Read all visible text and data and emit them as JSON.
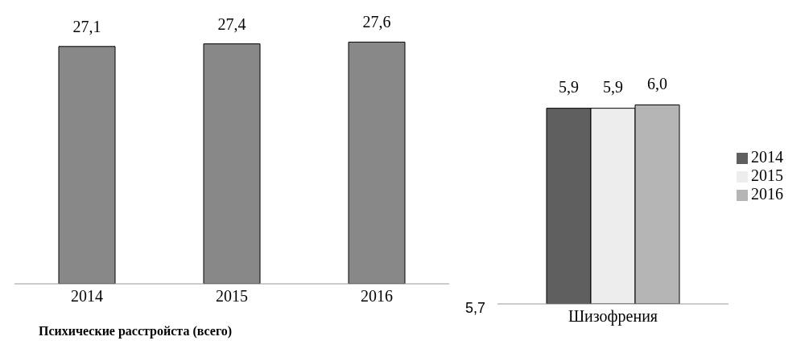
{
  "chart_data": [
    {
      "type": "bar",
      "categories": [
        "2014",
        "2015",
        "2016"
      ],
      "values": [
        27.1,
        27.4,
        27.6
      ],
      "value_labels": [
        "27,1",
        "27,4",
        "27,6"
      ],
      "color": "#888888",
      "xlabel": "Психические расстройста (всего)",
      "tick_labels": "x",
      "grid": false,
      "legend": false
    },
    {
      "type": "bar",
      "categories": [
        "Шизофрения"
      ],
      "series": [
        {
          "name": "2014",
          "color": "#5f5f5f",
          "values": [
            5.9
          ],
          "value_labels": [
            "5,9"
          ]
        },
        {
          "name": "2015",
          "color": "#ededed",
          "values": [
            5.9
          ],
          "value_labels": [
            "5,9"
          ]
        },
        {
          "name": "2016",
          "color": "#b5b5b5",
          "values": [
            6.0
          ],
          "value_labels": [
            "6,0"
          ]
        }
      ],
      "annotations": [
        "5,7"
      ],
      "grid": false,
      "legend": "right"
    }
  ]
}
